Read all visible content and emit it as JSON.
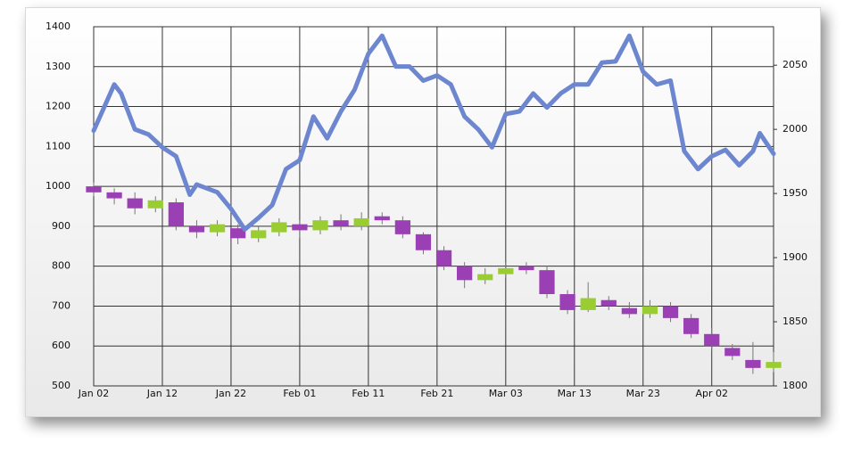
{
  "chart_data": {
    "type": "combo",
    "xlim": [
      0,
      99
    ],
    "ylim": [
      500,
      1400
    ],
    "y2lim": [
      1800,
      2080
    ],
    "xticks": [
      {
        "value": 0,
        "label": "Jan 02"
      },
      {
        "value": 10,
        "label": "Jan 12"
      },
      {
        "value": 20,
        "label": "Jan 22"
      },
      {
        "value": 30,
        "label": "Feb 01"
      },
      {
        "value": 40,
        "label": "Feb 11"
      },
      {
        "value": 50,
        "label": "Feb 21"
      },
      {
        "value": 60,
        "label": "Mar 03"
      },
      {
        "value": 70,
        "label": "Mar 13"
      },
      {
        "value": 80,
        "label": "Mar 23"
      },
      {
        "value": 90,
        "label": "Apr 02"
      }
    ],
    "yticks": [
      500,
      600,
      700,
      800,
      900,
      1000,
      1100,
      1200,
      1300,
      1400
    ],
    "y2ticks": [
      1800,
      1850,
      1900,
      1950,
      2000,
      2050
    ],
    "grid": true,
    "series": [
      {
        "type": "candlestick",
        "up_color": "#9acd32",
        "down_color": "#9b3fb5",
        "x": [
          0,
          3,
          6,
          9,
          12,
          15,
          18,
          21,
          24,
          27,
          30,
          33,
          36,
          39,
          42,
          45,
          48,
          51,
          54,
          57,
          60,
          63,
          66,
          69,
          72,
          75,
          78,
          81,
          84,
          87,
          90,
          93,
          96,
          99
        ],
        "open": [
          1000,
          985,
          970,
          945,
          960,
          900,
          885,
          895,
          870,
          885,
          905,
          890,
          915,
          900,
          925,
          915,
          880,
          840,
          800,
          765,
          780,
          800,
          790,
          730,
          690,
          715,
          695,
          680,
          700,
          670,
          630,
          595,
          565,
          545
        ],
        "high": [
          1010,
          995,
          985,
          975,
          970,
          915,
          915,
          905,
          900,
          920,
          915,
          925,
          930,
          935,
          935,
          925,
          885,
          850,
          810,
          795,
          810,
          810,
          800,
          740,
          760,
          725,
          710,
          715,
          710,
          680,
          645,
          605,
          610,
          585
        ],
        "low": [
          975,
          955,
          930,
          935,
          890,
          870,
          875,
          855,
          860,
          875,
          870,
          880,
          890,
          890,
          905,
          870,
          830,
          790,
          745,
          755,
          770,
          780,
          720,
          680,
          685,
          690,
          670,
          670,
          660,
          620,
          590,
          565,
          530,
          535
        ],
        "close": [
          985,
          970,
          945,
          965,
          900,
          885,
          905,
          870,
          890,
          910,
          890,
          915,
          900,
          920,
          915,
          880,
          840,
          800,
          765,
          780,
          795,
          790,
          730,
          690,
          720,
          700,
          680,
          700,
          670,
          630,
          600,
          575,
          545,
          560
        ]
      },
      {
        "type": "line",
        "axis": "y2",
        "color": "#6d86d0",
        "x": [
          0,
          3,
          4,
          6,
          8,
          10,
          12,
          14,
          15,
          18,
          20,
          22,
          24,
          26,
          28,
          30,
          32,
          34,
          36,
          38,
          40,
          42,
          44,
          46,
          48,
          50,
          52,
          54,
          56,
          58,
          60,
          62,
          64,
          66,
          68,
          70,
          72,
          74,
          76,
          78,
          80,
          82,
          84,
          86,
          88,
          90,
          92,
          94,
          96,
          97,
          99
        ],
        "values": [
          1999,
          2035,
          2028,
          2000,
          1996,
          1986,
          1979,
          1949,
          1957,
          1951,
          1938,
          1922,
          1931,
          1941,
          1969,
          1976,
          2010,
          1993,
          2014,
          2031,
          2059,
          2073,
          2049,
          2049,
          2038,
          2042,
          2035,
          2010,
          2000,
          1986,
          2012,
          2014,
          2028,
          2017,
          2028,
          2035,
          2035,
          2052,
          2053,
          2073,
          2045,
          2035,
          2038,
          1983,
          1969,
          1979,
          1984,
          1972,
          1983,
          1997,
          1981
        ]
      }
    ]
  }
}
